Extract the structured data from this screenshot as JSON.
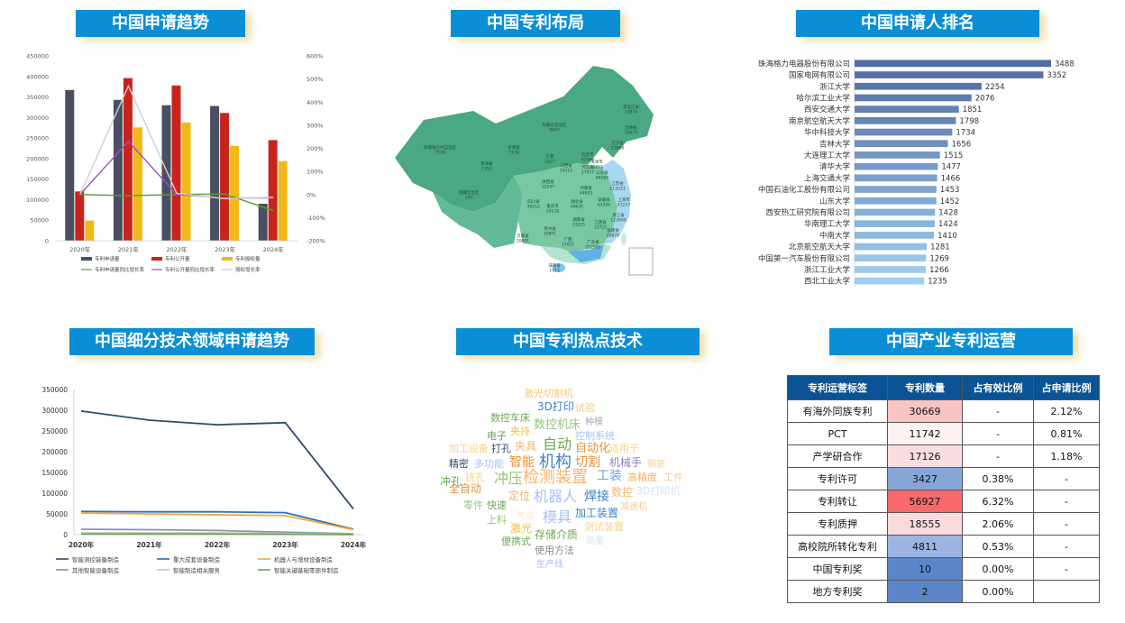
{
  "titles": {
    "trend": "中国申请趋势",
    "map": "中国专利布局",
    "rank": "中国申请人排名",
    "sub": "中国细分技术领域申请趋势",
    "hot": "中国专利热点技术",
    "ops": "中国产业专利运营"
  },
  "colors": {
    "title_bg": "#0a8fd6",
    "apply": "#4a4f63",
    "publish": "#c8241c",
    "grant": "#f0b917",
    "apply_rate": "#5c9e31",
    "publish_rate": "#9b50c2",
    "grant_rate": "#cfcfcf"
  },
  "chart_data": [
    {
      "type": "bar",
      "categories": [
        "2020年",
        "2021年",
        "2022年",
        "2023年",
        "2024年"
      ],
      "series": [
        {
          "name": "专利申请量",
          "values": [
            367000,
            343000,
            330000,
            328000,
            90000
          ]
        },
        {
          "name": "专利公开量",
          "values": [
            120000,
            396000,
            378000,
            311000,
            245000
          ]
        },
        {
          "name": "专利授权量",
          "values": [
            49000,
            276000,
            288000,
            231000,
            194000
          ]
        }
      ],
      "line_series": [
        {
          "name": "专利申请量同比增长率",
          "values": [
            0,
            -5,
            0,
            2,
            -70
          ]
        },
        {
          "name": "专利公开量同比增长率",
          "values": [
            0,
            230,
            0,
            -15,
            -15
          ]
        },
        {
          "name": "授权增长率",
          "values": [
            0,
            470,
            5,
            -18,
            -12
          ]
        }
      ],
      "y_ticks": [
        "0",
        "50000",
        "100000",
        "150000",
        "200000",
        "250000",
        "300000",
        "350000",
        "400000",
        "450000"
      ],
      "y2_ticks": [
        "-200%",
        "-100%",
        "0%",
        "100%",
        "200%",
        "300%",
        "400%",
        "500%",
        "600%"
      ],
      "ylim": [
        0,
        450000
      ],
      "y2lim": [
        -200,
        600
      ],
      "legend": "bottom"
    },
    {
      "type": "bar",
      "orientation": "horizontal",
      "categories": [
        "珠海格力电器股份有限公司",
        "国家电网有限公司",
        "浙江大学",
        "哈尔滨工业大学",
        "西安交通大学",
        "南京航空航天大学",
        "华中科技大学",
        "吉林大学",
        "大连理工大学",
        "清华大学",
        "上海交通大学",
        "中国石油化工股份有限公司",
        "山东大学",
        "西安热工研究院有限公司",
        "华南理工大学",
        "中南大学",
        "北京航空航天大学",
        "中国第一汽车股份有限公司",
        "浙江工业大学",
        "西北工业大学"
      ],
      "values": [
        3488,
        3352,
        2254,
        2076,
        1851,
        1798,
        1734,
        1656,
        1515,
        1477,
        1466,
        1453,
        1452,
        1428,
        1424,
        1410,
        1281,
        1269,
        1266,
        1235
      ]
    },
    {
      "type": "line",
      "categories": [
        "2020年",
        "2021年",
        "2022年",
        "2023年",
        "2024年"
      ],
      "series": [
        {
          "name": "智能测控装备制造",
          "color": "#2e4a6b",
          "values": [
            298000,
            276000,
            265000,
            270000,
            62000
          ]
        },
        {
          "name": "重大成套设备制造",
          "color": "#2f6db5",
          "values": [
            56000,
            55000,
            55000,
            53000,
            13000
          ]
        },
        {
          "name": "机器人与增材设备制造",
          "color": "#f0a93a",
          "values": [
            52000,
            50000,
            48000,
            46000,
            12000
          ]
        },
        {
          "name": "其他智能设备制造",
          "color": "#8a94a6",
          "values": [
            13000,
            12000,
            10000,
            6000,
            2000
          ]
        },
        {
          "name": "智能制造相关服务",
          "color": "#c4c4c4",
          "values": [
            4000,
            4000,
            4000,
            3000,
            1000
          ]
        },
        {
          "name": "智能关键基础零部件制造",
          "color": "#6aa84f",
          "values": [
            1500,
            1500,
            1500,
            1000,
            300
          ]
        }
      ],
      "y_ticks": [
        "0",
        "50000",
        "100000",
        "150000",
        "200000",
        "250000",
        "300000",
        "350000"
      ],
      "ylim": [
        0,
        350000
      ],
      "legend": "bottom"
    }
  ],
  "map": {
    "labels": [
      {
        "name": "新疆维吾尔自治区",
        "value": "7138"
      },
      {
        "name": "西藏自治区",
        "value": "543"
      },
      {
        "name": "青海省",
        "value": "1353"
      },
      {
        "name": "甘肃省",
        "value": "7138"
      },
      {
        "name": "内蒙古自治区",
        "value": "9667"
      },
      {
        "name": "黑龙江省",
        "value": "13874"
      },
      {
        "name": "吉林省",
        "value": "10074"
      },
      {
        "name": "辽宁省",
        "value": "23808"
      },
      {
        "name": "北京市",
        "value": "62968"
      },
      {
        "name": "天津市",
        "value": "25215"
      },
      {
        "name": "河北省",
        "value": "27057"
      },
      {
        "name": "山西省",
        "value": "14212"
      },
      {
        "name": "陕西省",
        "value": "32247"
      },
      {
        "name": "宁夏",
        "value": "1827"
      },
      {
        "name": "山东省",
        "value": "84286"
      },
      {
        "name": "河南省",
        "value": "44693"
      },
      {
        "name": "江苏省",
        "value": "113223"
      },
      {
        "name": "上海市",
        "value": "41227"
      },
      {
        "name": "安徽省",
        "value": "61356"
      },
      {
        "name": "湖北省",
        "value": "49635"
      },
      {
        "name": "浙江省",
        "value": "122699"
      },
      {
        "name": "四川省",
        "value": "46212"
      },
      {
        "name": "重庆市",
        "value": "24128"
      },
      {
        "name": "湖南省",
        "value": "33325"
      },
      {
        "name": "江西省",
        "value": "22725"
      },
      {
        "name": "福建省",
        "value": "28875"
      },
      {
        "name": "贵州省",
        "value": "10891"
      },
      {
        "name": "云南省",
        "value": "10891"
      },
      {
        "name": "广西",
        "value": "17021"
      },
      {
        "name": "广东省",
        "value": "212995"
      },
      {
        "name": "海南省",
        "value": "1913"
      }
    ]
  },
  "wordcloud": [
    {
      "text": "激光切割机",
      "color": "#f2c97a",
      "size": 11
    },
    {
      "text": "3D打印",
      "color": "#3c82c9",
      "size": 12
    },
    {
      "text": "试验",
      "color": "#f2c97a",
      "size": 11
    },
    {
      "text": "数控车床",
      "color": "#6aa84f",
      "size": 11
    },
    {
      "text": "数控机床",
      "color": "#93c47d",
      "size": 13
    },
    {
      "text": "种模",
      "color": "#aaaaaa",
      "size": 10
    },
    {
      "text": "电子",
      "color": "#6aa84f",
      "size": 11
    },
    {
      "text": "夹持",
      "color": "#f1c232",
      "size": 11
    },
    {
      "text": "控制系统",
      "color": "#a4c2f4",
      "size": 11
    },
    {
      "text": "加工设备",
      "color": "#f6d28b",
      "size": 11
    },
    {
      "text": "打孔",
      "color": "#2e4a6b",
      "size": 11
    },
    {
      "text": "夹具",
      "color": "#f6b26b",
      "size": 12
    },
    {
      "text": "自动",
      "color": "#6aa84f",
      "size": 16
    },
    {
      "text": "自动化",
      "color": "#e69138",
      "size": 13
    },
    {
      "text": "适用于",
      "color": "#f6d28b",
      "size": 11
    },
    {
      "text": "精密",
      "color": "#2e4a6b",
      "size": 11
    },
    {
      "text": "多功能",
      "color": "#a4c2f4",
      "size": 11
    },
    {
      "text": "智能",
      "color": "#e69138",
      "size": 14
    },
    {
      "text": "机构",
      "color": "#3c82c9",
      "size": 18
    },
    {
      "text": "切割",
      "color": "#e69138",
      "size": 14
    },
    {
      "text": "机械手",
      "color": "#8e7cc3",
      "size": 12
    },
    {
      "text": "钢筋",
      "color": "#f9cb9c",
      "size": 10
    },
    {
      "text": "冲孔",
      "color": "#6aa84f",
      "size": 12
    },
    {
      "text": "铣孔",
      "color": "#f6d28b",
      "size": 11
    },
    {
      "text": "冲压",
      "color": "#93c47d",
      "size": 16
    },
    {
      "text": "检测装置",
      "color": "#f6b26b",
      "size": 18
    },
    {
      "text": "工装",
      "color": "#6d9eeb",
      "size": 14
    },
    {
      "text": "高精度",
      "color": "#f6b26b",
      "size": 11
    },
    {
      "text": "工件",
      "color": "#f9cb9c",
      "size": 11
    },
    {
      "text": "全自动",
      "color": "#e69138",
      "size": 12
    },
    {
      "text": "定位",
      "color": "#f6b26b",
      "size": 12
    },
    {
      "text": "机器人",
      "color": "#a4c2f4",
      "size": 16
    },
    {
      "text": "焊接",
      "color": "#3c82c9",
      "size": 14
    },
    {
      "text": "数控",
      "color": "#f6b26b",
      "size": 12
    },
    {
      "text": "3D打印机",
      "color": "#cfe2f3",
      "size": 11
    },
    {
      "text": "零件",
      "color": "#93c47d",
      "size": 11
    },
    {
      "text": "快速",
      "color": "#6aa84f",
      "size": 11
    },
    {
      "text": "汽车",
      "color": "#fce5cd",
      "size": 11
    },
    {
      "text": "模具",
      "color": "#a4c2f4",
      "size": 16
    },
    {
      "text": "加工装置",
      "color": "#3c82c9",
      "size": 12
    },
    {
      "text": "减速机",
      "color": "#f9cb9c",
      "size": 10
    },
    {
      "text": "上料",
      "color": "#93c47d",
      "size": 11
    },
    {
      "text": "激光",
      "color": "#f1c232",
      "size": 12
    },
    {
      "text": "测试装置",
      "color": "#f6d28b",
      "size": 11
    },
    {
      "text": "便携式",
      "color": "#6aa84f",
      "size": 11
    },
    {
      "text": "存储介质",
      "color": "#6aa84f",
      "size": 12
    },
    {
      "text": "测量",
      "color": "#cfe2f3",
      "size": 10
    },
    {
      "text": "使用方法",
      "color": "#888888",
      "size": 11
    },
    {
      "text": "生产线",
      "color": "#a4c2f4",
      "size": 10
    }
  ],
  "ops_table": {
    "headers": [
      "专利运营标签",
      "专利数量",
      "占有效比例",
      "占申请比例"
    ],
    "rows": [
      {
        "label": "有海外同族专利",
        "count": "30669",
        "valid_ratio": "-",
        "apply_ratio": "2.12%",
        "count_bg": "#f8c4c4"
      },
      {
        "label": "PCT",
        "count": "11742",
        "valid_ratio": "-",
        "apply_ratio": "0.81%",
        "count_bg": "#fdf1f2"
      },
      {
        "label": "产学研合作",
        "count": "17126",
        "valid_ratio": "-",
        "apply_ratio": "1.18%",
        "count_bg": "#fadde1"
      },
      {
        "label": "专利许可",
        "count": "3427",
        "valid_ratio": "0.38%",
        "apply_ratio": "-",
        "count_bg": "#86a6d8"
      },
      {
        "label": "专利转让",
        "count": "56927",
        "valid_ratio": "6.32%",
        "apply_ratio": "-",
        "count_bg": "#f8696b"
      },
      {
        "label": "专利质押",
        "count": "18555",
        "valid_ratio": "2.06%",
        "apply_ratio": "-",
        "count_bg": "#fadbdd"
      },
      {
        "label": "高校院所转化专利",
        "count": "4811",
        "valid_ratio": "0.53%",
        "apply_ratio": "-",
        "count_bg": "#9bb5e0"
      },
      {
        "label": "中国专利奖",
        "count": "10",
        "valid_ratio": "0.00%",
        "apply_ratio": "-",
        "count_bg": "#5b87c8"
      },
      {
        "label": "地方专利奖",
        "count": "2",
        "valid_ratio": "0.00%",
        "apply_ratio": "",
        "count_bg": "#5b87c8"
      }
    ]
  }
}
